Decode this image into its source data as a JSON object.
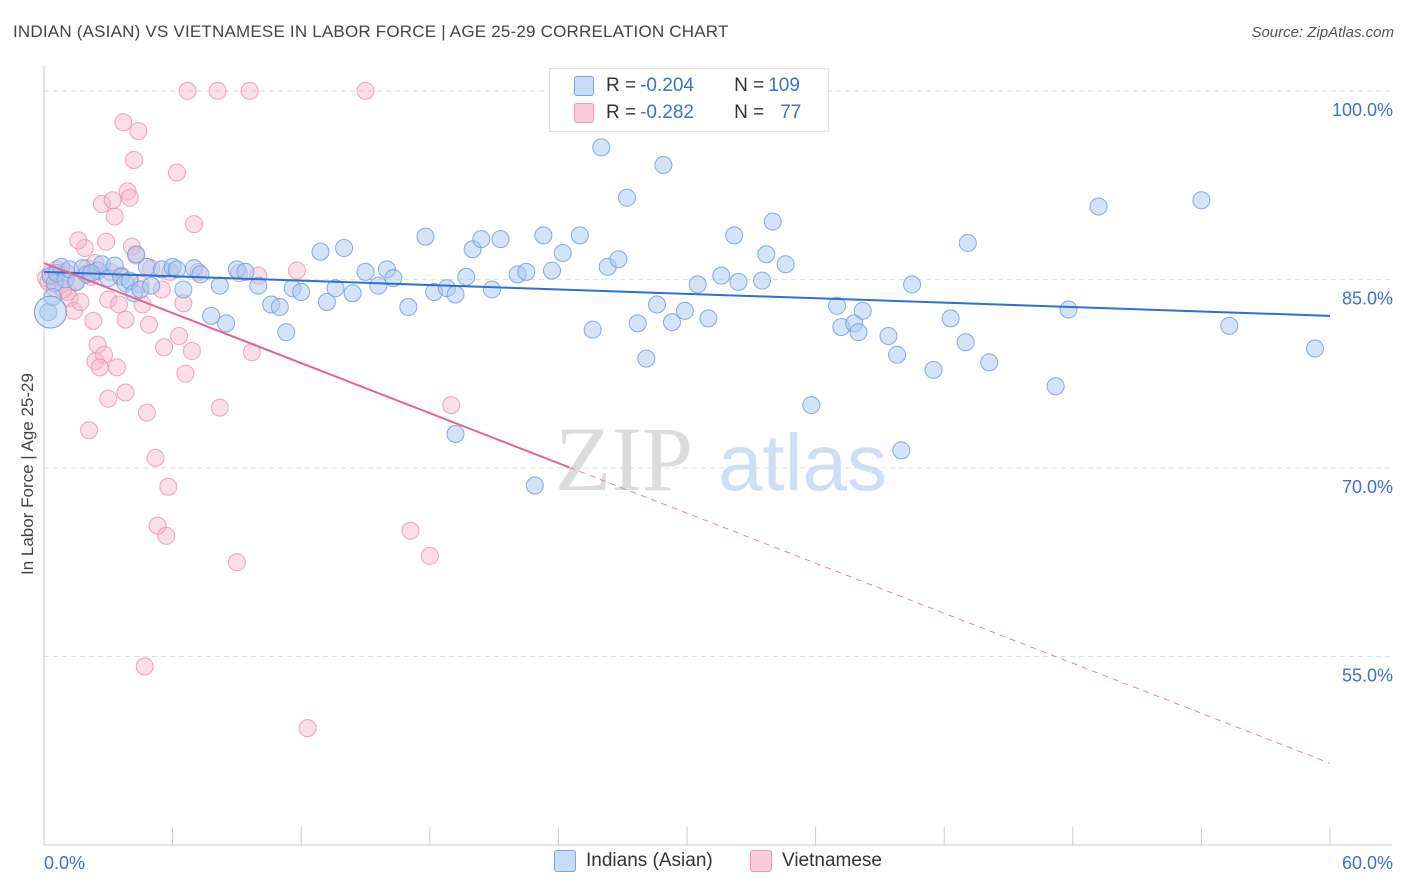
{
  "header": {
    "title": "INDIAN (ASIAN) VS VIETNAMESE IN LABOR FORCE | AGE 25-29 CORRELATION CHART",
    "source": "Source: ZipAtlas.com"
  },
  "legend": {
    "series1": {
      "r_label": "R = ",
      "r_value": "-0.204",
      "n_label": "N = ",
      "n_value": "109"
    },
    "series2": {
      "r_label": "R = ",
      "r_value": "-0.282",
      "n_label": "N = ",
      "n_value": "77"
    }
  },
  "colors": {
    "blue_fill": "#a9c8f0",
    "blue_stroke": "#6f9fdf",
    "blue_line": "#2f6fce",
    "pink_fill": "#f7b6cb",
    "pink_stroke": "#ec8faf",
    "pink_line": "#e36692",
    "axis_text": "#3b73c6",
    "grid": "#dddddd"
  },
  "watermark": {
    "zip": "ZIP",
    "atlas": "atlas"
  },
  "chart_data": {
    "type": "scatter",
    "xlabel": "",
    "ylabel": "In Labor Force | Age 25-29",
    "xlim": [
      0,
      60
    ],
    "ylim": [
      40,
      101.5
    ],
    "x_tick_labels": [
      "0.0%",
      "60.0%"
    ],
    "y_ticks": [
      55,
      70,
      85,
      100
    ],
    "y_tick_labels": [
      "55.0%",
      "70.0%",
      "85.0%",
      "100.0%"
    ],
    "grid": true,
    "series": [
      {
        "name": "Indians (Asian)",
        "r": -0.204,
        "n": 109,
        "trend": {
          "x0": 0,
          "y0": 85.6,
          "x1": 60,
          "y1": 82.1,
          "dash_from": 60
        },
        "points": [
          [
            0.3,
            85.3
          ],
          [
            0.5,
            84.7
          ],
          [
            0.6,
            85.5
          ],
          [
            0.8,
            86.0
          ],
          [
            1.0,
            85.0
          ],
          [
            1.2,
            85.8
          ],
          [
            1.5,
            84.8
          ],
          [
            1.8,
            85.9
          ],
          [
            2.0,
            85.4
          ],
          [
            2.5,
            85.7
          ],
          [
            2.7,
            86.2
          ],
          [
            3.0,
            85.1
          ],
          [
            3.3,
            86.1
          ],
          [
            3.6,
            85.2
          ],
          [
            3.8,
            84.7
          ],
          [
            4.0,
            84.9
          ],
          [
            4.2,
            83.9
          ],
          [
            4.3,
            87.0
          ],
          [
            4.5,
            84.2
          ],
          [
            4.8,
            86.0
          ],
          [
            5.0,
            84.5
          ],
          [
            5.5,
            85.8
          ],
          [
            6.0,
            86.0
          ],
          [
            6.2,
            85.8
          ],
          [
            6.5,
            84.2
          ],
          [
            7.0,
            85.9
          ],
          [
            7.3,
            85.4
          ],
          [
            7.8,
            82.1
          ],
          [
            8.2,
            84.5
          ],
          [
            8.5,
            81.5
          ],
          [
            9.0,
            85.8
          ],
          [
            9.4,
            85.6
          ],
          [
            10.0,
            84.5
          ],
          [
            10.6,
            83.0
          ],
          [
            11.0,
            82.8
          ],
          [
            11.3,
            80.8
          ],
          [
            11.6,
            84.3
          ],
          [
            12.0,
            84.0
          ],
          [
            12.9,
            87.2
          ],
          [
            13.2,
            83.2
          ],
          [
            13.6,
            84.3
          ],
          [
            14.0,
            87.5
          ],
          [
            14.4,
            83.9
          ],
          [
            15.0,
            85.6
          ],
          [
            15.6,
            84.5
          ],
          [
            16.0,
            85.8
          ],
          [
            16.3,
            85.1
          ],
          [
            17.0,
            82.8
          ],
          [
            17.8,
            88.4
          ],
          [
            18.2,
            84.0
          ],
          [
            18.8,
            84.3
          ],
          [
            19.2,
            83.8
          ],
          [
            19.7,
            85.2
          ],
          [
            20.0,
            87.4
          ],
          [
            20.4,
            88.2
          ],
          [
            20.9,
            84.2
          ],
          [
            21.3,
            88.2
          ],
          [
            22.1,
            85.4
          ],
          [
            22.5,
            85.6
          ],
          [
            23.3,
            88.5
          ],
          [
            23.7,
            85.7
          ],
          [
            24.2,
            87.1
          ],
          [
            25.0,
            88.5
          ],
          [
            25.6,
            81.0
          ],
          [
            26.0,
            95.5
          ],
          [
            26.3,
            86.0
          ],
          [
            26.8,
            86.6
          ],
          [
            27.2,
            91.5
          ],
          [
            27.7,
            81.5
          ],
          [
            28.1,
            78.7
          ],
          [
            28.6,
            83.0
          ],
          [
            28.9,
            94.1
          ],
          [
            29.3,
            81.6
          ],
          [
            29.9,
            82.5
          ],
          [
            30.5,
            84.6
          ],
          [
            31.0,
            81.9
          ],
          [
            31.6,
            85.3
          ],
          [
            32.2,
            88.5
          ],
          [
            32.4,
            84.8
          ],
          [
            33.5,
            84.9
          ],
          [
            33.7,
            87.0
          ],
          [
            34.0,
            89.6
          ],
          [
            34.6,
            86.2
          ],
          [
            35.8,
            75.0
          ],
          [
            37.0,
            82.9
          ],
          [
            37.2,
            81.2
          ],
          [
            37.8,
            81.5
          ],
          [
            38.0,
            80.8
          ],
          [
            38.2,
            82.5
          ],
          [
            39.4,
            80.5
          ],
          [
            39.8,
            79.0
          ],
          [
            40.0,
            71.4
          ],
          [
            40.5,
            84.6
          ],
          [
            41.5,
            77.8
          ],
          [
            42.3,
            81.9
          ],
          [
            43.0,
            80.0
          ],
          [
            43.1,
            87.9
          ],
          [
            44.1,
            78.4
          ],
          [
            47.2,
            76.5
          ],
          [
            47.8,
            82.6
          ],
          [
            49.2,
            90.8
          ],
          [
            54.0,
            91.3
          ],
          [
            55.3,
            81.3
          ],
          [
            59.3,
            79.5
          ],
          [
            22.9,
            68.6
          ],
          [
            19.2,
            72.7
          ],
          [
            0.2,
            82.4
          ],
          [
            0.4,
            83.6
          ],
          [
            2.2,
            85.5
          ]
        ]
      },
      {
        "name": "Vietnamese",
        "r": -0.282,
        "n": 77,
        "trend": {
          "x0": 0,
          "y0": 86.3,
          "x1": 60,
          "y1": 46.5,
          "dash_from": 24.5
        },
        "points": [
          [
            0.1,
            85.1
          ],
          [
            0.2,
            84.8
          ],
          [
            0.3,
            85.5
          ],
          [
            0.5,
            84.3
          ],
          [
            0.6,
            85.8
          ],
          [
            0.8,
            85.0
          ],
          [
            1.0,
            85.6
          ],
          [
            1.1,
            84.0
          ],
          [
            1.2,
            83.5
          ],
          [
            1.4,
            82.5
          ],
          [
            1.5,
            84.8
          ],
          [
            1.7,
            83.2
          ],
          [
            1.9,
            87.5
          ],
          [
            2.0,
            85.9
          ],
          [
            2.2,
            85.2
          ],
          [
            2.3,
            81.7
          ],
          [
            2.4,
            78.5
          ],
          [
            2.5,
            79.8
          ],
          [
            2.7,
            91.0
          ],
          [
            2.9,
            88.0
          ],
          [
            3.0,
            83.4
          ],
          [
            3.1,
            85.6
          ],
          [
            3.3,
            90.0
          ],
          [
            3.4,
            78.0
          ],
          [
            3.5,
            83.0
          ],
          [
            3.6,
            85.3
          ],
          [
            3.8,
            81.8
          ],
          [
            3.9,
            92.0
          ],
          [
            4.1,
            87.6
          ],
          [
            4.3,
            86.9
          ],
          [
            4.4,
            96.8
          ],
          [
            4.5,
            84.6
          ],
          [
            4.6,
            83.0
          ],
          [
            4.8,
            74.4
          ],
          [
            4.9,
            81.4
          ],
          [
            5.2,
            70.8
          ],
          [
            5.3,
            65.4
          ],
          [
            5.5,
            84.2
          ],
          [
            5.6,
            79.6
          ],
          [
            5.8,
            68.5
          ],
          [
            5.9,
            85.6
          ],
          [
            6.2,
            93.5
          ],
          [
            6.3,
            80.5
          ],
          [
            6.5,
            83.1
          ],
          [
            6.6,
            77.5
          ],
          [
            6.7,
            100.0
          ],
          [
            6.9,
            79.3
          ],
          [
            7.0,
            89.4
          ],
          [
            7.2,
            85.6
          ],
          [
            8.1,
            100.0
          ],
          [
            8.2,
            74.8
          ],
          [
            9.0,
            62.5
          ],
          [
            9.1,
            85.5
          ],
          [
            9.6,
            100.0
          ],
          [
            9.7,
            79.2
          ],
          [
            10.0,
            85.3
          ],
          [
            11.8,
            85.7
          ],
          [
            12.3,
            49.3
          ],
          [
            15.0,
            100.0
          ],
          [
            17.1,
            65.0
          ],
          [
            18.0,
            63.0
          ],
          [
            19.0,
            75.0
          ],
          [
            3.7,
            97.5
          ],
          [
            4.2,
            94.5
          ],
          [
            4.0,
            91.5
          ],
          [
            3.2,
            91.3
          ],
          [
            2.8,
            79.0
          ],
          [
            2.6,
            78.0
          ],
          [
            5.0,
            85.9
          ],
          [
            5.7,
            64.6
          ],
          [
            4.7,
            54.2
          ],
          [
            3.0,
            75.5
          ],
          [
            2.1,
            73.0
          ],
          [
            3.8,
            76.0
          ],
          [
            1.6,
            88.1
          ],
          [
            2.4,
            86.3
          ],
          [
            0.9,
            84.2
          ]
        ]
      }
    ]
  },
  "bottom_legend": {
    "series1": "Indians (Asian)",
    "series2": "Vietnamese"
  }
}
